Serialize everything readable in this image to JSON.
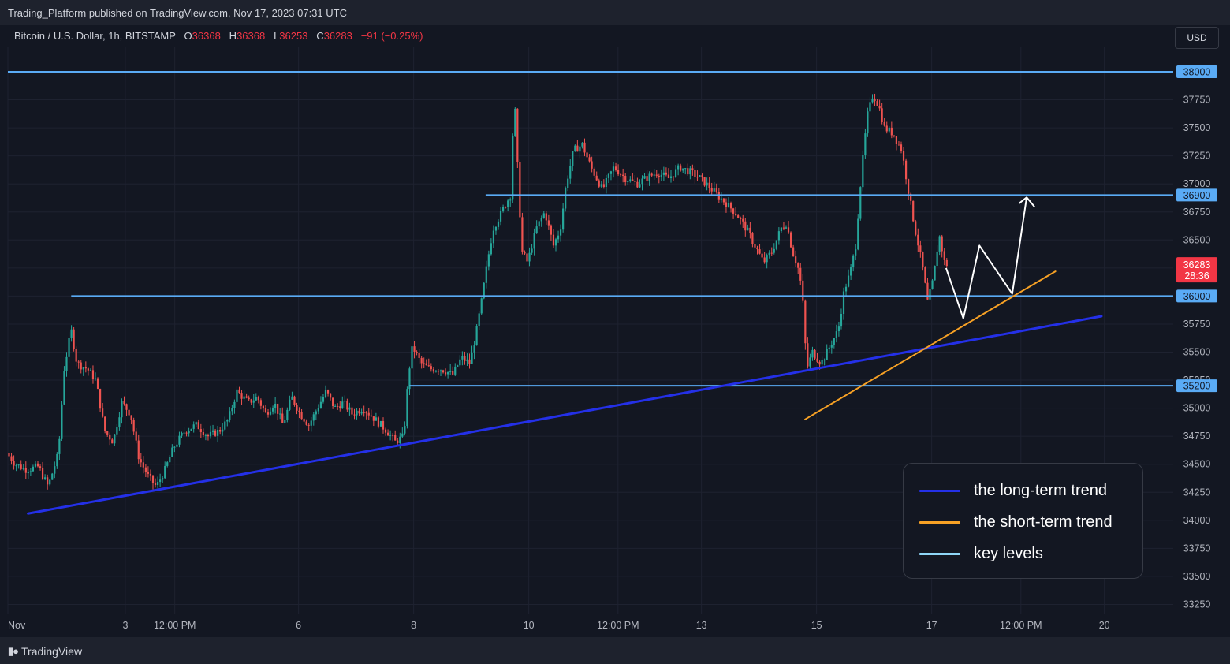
{
  "header": {
    "published_by": "Trading_Platform published on TradingView.com, Nov 17, 2023 07:31 UTC",
    "symbol": "Bitcoin / U.S. Dollar, 1h, BITSTAMP",
    "ohlc": {
      "o_label": "O",
      "o_value": "36368",
      "h_label": "H",
      "h_value": "36368",
      "l_label": "L",
      "l_value": "36253",
      "c_label": "C",
      "c_value": "36283",
      "change": "−91 (−0.25%)"
    },
    "currency": "USD"
  },
  "footer": {
    "brand": "TradingView"
  },
  "colors": {
    "background": "#131722",
    "up": "#26a69a",
    "down": "#ef5350",
    "long_trend": "#2430e8",
    "short_trend": "#f7a125",
    "key_level": "#5aabf5",
    "projection": "#ffffff",
    "price_label_bg": "#f23645"
  },
  "legend": [
    {
      "label": "the long-term trend",
      "color": "#2430e8"
    },
    {
      "label": "the short-term trend",
      "color": "#f7a125"
    },
    {
      "label": "key levels",
      "color": "#8fd6f7"
    }
  ],
  "chart_data": {
    "type": "candlestick",
    "title": "Bitcoin / U.S. Dollar, 1h, BITSTAMP",
    "ylim": [
      33150,
      38100
    ],
    "y_ticks": [
      33250,
      33500,
      33750,
      34000,
      34250,
      34500,
      34750,
      35000,
      35250,
      35500,
      35750,
      36000,
      36250,
      36500,
      36750,
      37000,
      37250,
      37500,
      37750,
      38000
    ],
    "x_ticks": [
      {
        "label": "Nov",
        "t": 0
      },
      {
        "label": "3",
        "t": 2.04
      },
      {
        "label": "12:00 PM",
        "t": 2.9
      },
      {
        "label": "6",
        "t": 5.05
      },
      {
        "label": "8",
        "t": 7.05
      },
      {
        "label": "10",
        "t": 9.05
      },
      {
        "label": "12:00 PM",
        "t": 10.6
      },
      {
        "label": "13",
        "t": 12.05
      },
      {
        "label": "15",
        "t": 14.05
      },
      {
        "label": "17",
        "t": 16.05
      },
      {
        "label": "12:00 PM",
        "t": 17.6
      },
      {
        "label": "20",
        "t": 19.05
      }
    ],
    "key_levels": [
      {
        "price": 38000,
        "t_start": 0
      },
      {
        "price": 36900,
        "t_start": 8.3
      },
      {
        "price": 36000,
        "t_start": 1.1
      },
      {
        "price": 35200,
        "t_start": 6.98
      }
    ],
    "current_price": {
      "price": 36283,
      "countdown": "28:36"
    },
    "long_term_trend": {
      "t1": 0.35,
      "p1": 34060,
      "t2": 19.0,
      "p2": 35820
    },
    "short_term_trend": {
      "t1": 13.85,
      "p1": 34900,
      "t2": 18.2,
      "p2": 36220
    },
    "projection": [
      {
        "t": 16.3,
        "p": 36250
      },
      {
        "t": 16.6,
        "p": 35800
      },
      {
        "t": 16.88,
        "p": 36450
      },
      {
        "t": 17.45,
        "p": 36020
      },
      {
        "t": 17.7,
        "p": 36880
      }
    ],
    "price_path": [
      {
        "t": 0.0,
        "p": 34600
      },
      {
        "t": 0.15,
        "p": 34500
      },
      {
        "t": 0.35,
        "p": 34450
      },
      {
        "t": 0.55,
        "p": 34480
      },
      {
        "t": 0.72,
        "p": 34300
      },
      {
        "t": 0.9,
        "p": 34600
      },
      {
        "t": 1.0,
        "p": 35350
      },
      {
        "t": 1.12,
        "p": 35700
      },
      {
        "t": 1.22,
        "p": 35400
      },
      {
        "t": 1.4,
        "p": 35350
      },
      {
        "t": 1.55,
        "p": 35250
      },
      {
        "t": 1.7,
        "p": 34800
      },
      {
        "t": 1.85,
        "p": 34700
      },
      {
        "t": 2.0,
        "p": 35050
      },
      {
        "t": 2.15,
        "p": 34950
      },
      {
        "t": 2.3,
        "p": 34550
      },
      {
        "t": 2.45,
        "p": 34400
      },
      {
        "t": 2.6,
        "p": 34300
      },
      {
        "t": 2.75,
        "p": 34450
      },
      {
        "t": 2.9,
        "p": 34650
      },
      {
        "t": 3.1,
        "p": 34800
      },
      {
        "t": 3.3,
        "p": 34850
      },
      {
        "t": 3.5,
        "p": 34750
      },
      {
        "t": 3.7,
        "p": 34800
      },
      {
        "t": 3.85,
        "p": 34900
      },
      {
        "t": 4.0,
        "p": 35150
      },
      {
        "t": 4.2,
        "p": 35050
      },
      {
        "t": 4.35,
        "p": 35100
      },
      {
        "t": 4.5,
        "p": 34950
      },
      {
        "t": 4.65,
        "p": 35050
      },
      {
        "t": 4.8,
        "p": 34850
      },
      {
        "t": 4.95,
        "p": 35100
      },
      {
        "t": 5.1,
        "p": 34950
      },
      {
        "t": 5.25,
        "p": 34850
      },
      {
        "t": 5.4,
        "p": 35000
      },
      {
        "t": 5.55,
        "p": 35150
      },
      {
        "t": 5.7,
        "p": 35000
      },
      {
        "t": 5.85,
        "p": 35050
      },
      {
        "t": 6.0,
        "p": 34950
      },
      {
        "t": 6.2,
        "p": 35000
      },
      {
        "t": 6.4,
        "p": 34900
      },
      {
        "t": 6.6,
        "p": 34800
      },
      {
        "t": 6.75,
        "p": 34700
      },
      {
        "t": 6.9,
        "p": 34750
      },
      {
        "t": 6.98,
        "p": 35300
      },
      {
        "t": 7.05,
        "p": 35550
      },
      {
        "t": 7.2,
        "p": 35400
      },
      {
        "t": 7.35,
        "p": 35350
      },
      {
        "t": 7.55,
        "p": 35350
      },
      {
        "t": 7.75,
        "p": 35300
      },
      {
        "t": 7.9,
        "p": 35450
      },
      {
        "t": 8.05,
        "p": 35400
      },
      {
        "t": 8.15,
        "p": 35650
      },
      {
        "t": 8.25,
        "p": 35950
      },
      {
        "t": 8.35,
        "p": 36300
      },
      {
        "t": 8.45,
        "p": 36600
      },
      {
        "t": 8.55,
        "p": 36700
      },
      {
        "t": 8.65,
        "p": 36800
      },
      {
        "t": 8.75,
        "p": 36900
      },
      {
        "t": 8.82,
        "p": 37800
      },
      {
        "t": 8.88,
        "p": 37100
      },
      {
        "t": 8.95,
        "p": 36400
      },
      {
        "t": 9.05,
        "p": 36300
      },
      {
        "t": 9.2,
        "p": 36600
      },
      {
        "t": 9.35,
        "p": 36750
      },
      {
        "t": 9.5,
        "p": 36450
      },
      {
        "t": 9.62,
        "p": 36600
      },
      {
        "t": 9.72,
        "p": 37000
      },
      {
        "t": 9.85,
        "p": 37300
      },
      {
        "t": 10.0,
        "p": 37350
      },
      {
        "t": 10.15,
        "p": 37150
      },
      {
        "t": 10.35,
        "p": 36950
      },
      {
        "t": 10.55,
        "p": 37150
      },
      {
        "t": 10.75,
        "p": 37050
      },
      {
        "t": 10.95,
        "p": 37000
      },
      {
        "t": 11.1,
        "p": 37050
      },
      {
        "t": 11.3,
        "p": 37100
      },
      {
        "t": 11.5,
        "p": 37050
      },
      {
        "t": 11.7,
        "p": 37150
      },
      {
        "t": 11.9,
        "p": 37100
      },
      {
        "t": 12.05,
        "p": 37050
      },
      {
        "t": 12.25,
        "p": 36950
      },
      {
        "t": 12.45,
        "p": 36850
      },
      {
        "t": 12.65,
        "p": 36750
      },
      {
        "t": 12.85,
        "p": 36600
      },
      {
        "t": 13.0,
        "p": 36450
      },
      {
        "t": 13.15,
        "p": 36300
      },
      {
        "t": 13.3,
        "p": 36400
      },
      {
        "t": 13.45,
        "p": 36600
      },
      {
        "t": 13.55,
        "p": 36650
      },
      {
        "t": 13.65,
        "p": 36400
      },
      {
        "t": 13.75,
        "p": 36250
      },
      {
        "t": 13.82,
        "p": 36050
      },
      {
        "t": 13.9,
        "p": 35350
      },
      {
        "t": 14.0,
        "p": 35500
      },
      {
        "t": 14.15,
        "p": 35400
      },
      {
        "t": 14.3,
        "p": 35550
      },
      {
        "t": 14.45,
        "p": 35700
      },
      {
        "t": 14.55,
        "p": 36050
      },
      {
        "t": 14.65,
        "p": 36200
      },
      {
        "t": 14.75,
        "p": 36450
      },
      {
        "t": 14.85,
        "p": 37100
      },
      {
        "t": 14.95,
        "p": 37600
      },
      {
        "t": 15.05,
        "p": 37800
      },
      {
        "t": 15.15,
        "p": 37700
      },
      {
        "t": 15.25,
        "p": 37500
      },
      {
        "t": 15.4,
        "p": 37450
      },
      {
        "t": 15.55,
        "p": 37300
      },
      {
        "t": 15.68,
        "p": 36900
      },
      {
        "t": 15.78,
        "p": 36600
      },
      {
        "t": 15.9,
        "p": 36300
      },
      {
        "t": 16.0,
        "p": 35950
      },
      {
        "t": 16.1,
        "p": 36150
      },
      {
        "t": 16.2,
        "p": 36550
      },
      {
        "t": 16.3,
        "p": 36283
      }
    ]
  }
}
